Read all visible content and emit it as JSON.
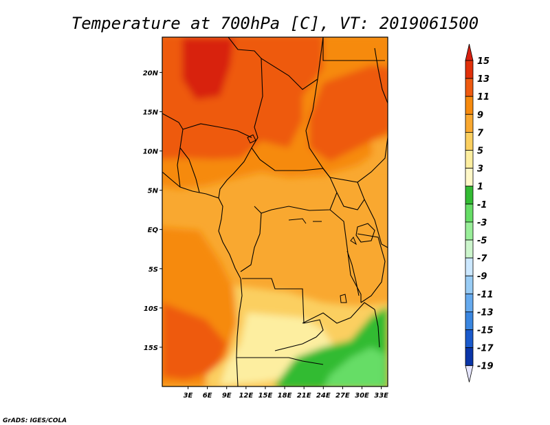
{
  "title": "Temperature at 700hPa [C], VT: 2019061500",
  "credit": "GrADS: IGES/COLA",
  "map": {
    "lat_range": [
      -20,
      24.5
    ],
    "lon_range": [
      -1,
      34
    ],
    "lat_ticks": [
      {
        "lat": 20,
        "label": "20N"
      },
      {
        "lat": 15,
        "label": "15N"
      },
      {
        "lat": 10,
        "label": "10N"
      },
      {
        "lat": 5,
        "label": "5N"
      },
      {
        "lat": 0,
        "label": "EQ"
      },
      {
        "lat": -5,
        "label": "5S"
      },
      {
        "lat": -10,
        "label": "10S"
      },
      {
        "lat": -15,
        "label": "15S"
      }
    ],
    "lon_ticks": [
      {
        "lon": 3,
        "label": "3E"
      },
      {
        "lon": 6,
        "label": "6E"
      },
      {
        "lon": 9,
        "label": "9E"
      },
      {
        "lon": 12,
        "label": "12E"
      },
      {
        "lon": 15,
        "label": "15E"
      },
      {
        "lon": 18,
        "label": "18E"
      },
      {
        "lon": 21,
        "label": "21E"
      },
      {
        "lon": 24,
        "label": "24E"
      },
      {
        "lon": 27,
        "label": "27E"
      },
      {
        "lon": 30,
        "label": "30E"
      },
      {
        "lon": 33,
        "label": "33E"
      }
    ]
  },
  "colorbar": {
    "labels": [
      "15",
      "13",
      "11",
      "9",
      "7",
      "5",
      "3",
      "1",
      "-1",
      "-3",
      "-5",
      "-7",
      "-9",
      "-11",
      "-13",
      "-15",
      "-17",
      "-19"
    ],
    "colors": [
      "#e0300a",
      "#ee5a10",
      "#f68a0e",
      "#f9a830",
      "#fbcf60",
      "#fdeea0",
      "#fff8c8",
      "#33bb33",
      "#66dd66",
      "#99ee99",
      "#ccf5cc",
      "#cce8ff",
      "#99ccf5",
      "#66aaee",
      "#3a86e0",
      "#1a5acc",
      "#0a35a8",
      "#00186a",
      "#eeeeff"
    ],
    "top_color": "#d82010",
    "bottom_color": "#e6e6ff"
  }
}
